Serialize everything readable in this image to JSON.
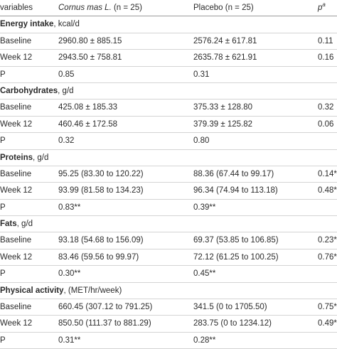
{
  "header": {
    "col0": "variables",
    "col1_italic": "Cornus mas L.",
    "col1_rest": " (n = 25)",
    "col2": "Placebo (n = 25)",
    "col3_p": "p",
    "col3_sup": "a"
  },
  "sections": [
    {
      "title": "Energy intake",
      "unit": ", kcal/d",
      "rows": [
        {
          "label": "Baseline",
          "cornus": "2960.80 ± 885.15",
          "placebo": "2576.24 ± 617.81",
          "p": "0.11"
        },
        {
          "label": "Week 12",
          "cornus": "2943.50 ± 758.81",
          "placebo": "2635.78 ± 621.91",
          "p": "0.16"
        },
        {
          "label": "P",
          "cornus": "0.85",
          "placebo": "0.31",
          "p": ""
        }
      ]
    },
    {
      "title": "Carbohydrates",
      "unit": ", g/d",
      "rows": [
        {
          "label": "Baseline",
          "cornus": "425.08 ± 185.33",
          "placebo": "375.33 ± 128.80",
          "p": "0.32"
        },
        {
          "label": "Week 12",
          "cornus": "460.46 ± 172.58",
          "placebo": "379.39 ± 125.82",
          "p": "0.06"
        },
        {
          "label": "P",
          "cornus": "0.32",
          "placebo": "0.80",
          "p": ""
        }
      ]
    },
    {
      "title": "Proteins",
      "unit": ", g/d",
      "rows": [
        {
          "label": "Baseline",
          "cornus": "95.25 (83.30 to 120.22)",
          "placebo": "88.36 (67.44 to 99.17)",
          "p": "0.14*"
        },
        {
          "label": "Week 12",
          "cornus": "93.99 (81.58 to 134.23)",
          "placebo": "96.34 (74.94 to 113.18)",
          "p": "0.48*"
        },
        {
          "label": "P",
          "cornus": "0.83**",
          "placebo": "0.39**",
          "p": ""
        }
      ]
    },
    {
      "title": "Fats",
      "unit": ", g/d",
      "rows": [
        {
          "label": "Baseline",
          "cornus": "93.18 (54.68 to 156.09)",
          "placebo": "69.37 (53.85 to 106.85)",
          "p": "0.23*"
        },
        {
          "label": "Week 12",
          "cornus": "83.46 (59.56 to 99.97)",
          "placebo": "72.12 (61.25 to 100.25)",
          "p": "0.76*"
        },
        {
          "label": "P",
          "cornus": "0.30**",
          "placebo": "0.45**",
          "p": ""
        }
      ]
    },
    {
      "title": "Physical activity",
      "unit": ", (MET/hr/week)",
      "rows": [
        {
          "label": "Baseline",
          "cornus": "660.45 (307.12 to 791.25)",
          "placebo": "341.5 (0 to 1705.50)",
          "p": "0.75*"
        },
        {
          "label": "Week 12",
          "cornus": "850.50 (111.37 to 881.29)",
          "placebo": "283.75 (0 to 1234.12)",
          "p": "0.49*"
        },
        {
          "label": "P",
          "cornus": "0.31**",
          "placebo": "0.28**",
          "p": ""
        }
      ]
    }
  ]
}
